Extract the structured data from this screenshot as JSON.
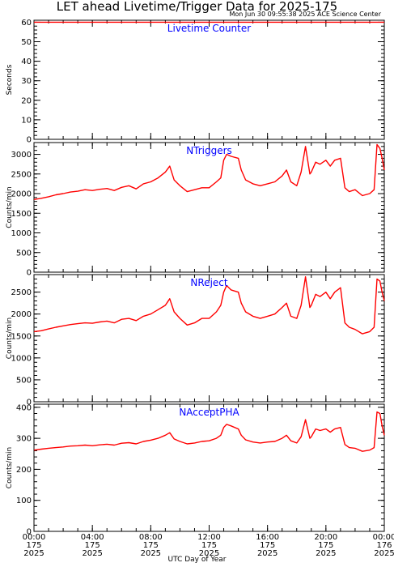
{
  "header": {
    "title": "LET ahead Livetime/Trigger Data for 2025-175",
    "subtitle": "Mon Jun 30 09:55:38 2025 ACE Science Center"
  },
  "colors": {
    "series": "#ff0000",
    "panel_label": "#0000ff",
    "axes": "#000000"
  },
  "chart_data": {
    "type": "line",
    "xlabel": "UTC Day of Year",
    "x_ticks": [
      {
        "hour": 0,
        "time": "00:00",
        "doy": "175",
        "year": "2025"
      },
      {
        "hour": 4,
        "time": "04:00",
        "doy": "175",
        "year": "2025"
      },
      {
        "hour": 8,
        "time": "08:00",
        "doy": "175",
        "year": "2025"
      },
      {
        "hour": 12,
        "time": "12:00",
        "doy": "175",
        "year": "2025"
      },
      {
        "hour": 16,
        "time": "16:00",
        "doy": "175",
        "year": "2025"
      },
      {
        "hour": 20,
        "time": "20:00",
        "doy": "175",
        "year": "2025"
      },
      {
        "hour": 24,
        "time": "00:00",
        "doy": "176",
        "year": "2025"
      }
    ],
    "xlim": [
      0,
      24
    ],
    "panels": [
      {
        "label": "Livetime Counter",
        "ylabel": "Seconds",
        "ylim": [
          0,
          61
        ],
        "yticks": [
          0,
          10,
          20,
          30,
          40,
          50,
          60
        ],
        "x": [
          0,
          24
        ],
        "y": [
          60,
          60
        ]
      },
      {
        "label": "NTriggers",
        "ylabel": "Counts/min",
        "ylim": [
          0,
          3300
        ],
        "yticks": [
          0,
          500,
          1000,
          1500,
          2000,
          2500,
          3000
        ],
        "x": [
          0,
          0.5,
          1,
          1.5,
          2,
          2.5,
          3,
          3.5,
          4,
          4.5,
          5,
          5.5,
          6,
          6.5,
          7,
          7.5,
          8,
          8.5,
          9,
          9.3,
          9.6,
          10,
          10.5,
          11,
          11.5,
          12,
          12.5,
          12.8,
          13,
          13.2,
          13.5,
          14,
          14.2,
          14.5,
          15,
          15.5,
          16,
          16.5,
          17,
          17.3,
          17.6,
          18,
          18.3,
          18.6,
          18.9,
          19,
          19.3,
          19.6,
          20,
          20.3,
          20.6,
          21,
          21.3,
          21.6,
          22,
          22.5,
          23,
          23.3,
          23.5,
          23.7,
          23.85,
          24
        ],
        "y": [
          1850,
          1880,
          1920,
          1970,
          2000,
          2040,
          2060,
          2100,
          2080,
          2110,
          2130,
          2080,
          2160,
          2200,
          2120,
          2250,
          2300,
          2400,
          2550,
          2700,
          2350,
          2200,
          2050,
          2100,
          2150,
          2150,
          2300,
          2400,
          2850,
          3000,
          2950,
          2900,
          2600,
          2350,
          2250,
          2200,
          2250,
          2300,
          2450,
          2600,
          2300,
          2200,
          2550,
          3200,
          2500,
          2550,
          2800,
          2750,
          2850,
          2700,
          2850,
          2900,
          2150,
          2050,
          2100,
          1950,
          2000,
          2100,
          3250,
          3150,
          2900,
          2600
        ]
      },
      {
        "label": "NReject",
        "ylabel": "Counts/min",
        "ylim": [
          0,
          2900
        ],
        "yticks": [
          0,
          500,
          1000,
          1500,
          2000,
          2500
        ],
        "x": [
          0,
          0.5,
          1,
          1.5,
          2,
          2.5,
          3,
          3.5,
          4,
          4.5,
          5,
          5.5,
          6,
          6.5,
          7,
          7.5,
          8,
          8.5,
          9,
          9.3,
          9.6,
          10,
          10.5,
          11,
          11.5,
          12,
          12.5,
          12.8,
          13,
          13.2,
          13.5,
          14,
          14.2,
          14.5,
          15,
          15.5,
          16,
          16.5,
          17,
          17.3,
          17.6,
          18,
          18.3,
          18.6,
          18.9,
          19,
          19.3,
          19.6,
          20,
          20.3,
          20.6,
          21,
          21.3,
          21.6,
          22,
          22.5,
          23,
          23.3,
          23.5,
          23.7,
          23.85,
          24
        ],
        "y": [
          1600,
          1620,
          1660,
          1700,
          1730,
          1760,
          1780,
          1800,
          1790,
          1820,
          1840,
          1800,
          1880,
          1900,
          1850,
          1950,
          2000,
          2100,
          2200,
          2350,
          2050,
          1900,
          1750,
          1800,
          1900,
          1900,
          2050,
          2200,
          2500,
          2650,
          2550,
          2500,
          2250,
          2050,
          1950,
          1900,
          1950,
          2000,
          2150,
          2250,
          1950,
          1900,
          2200,
          2850,
          2150,
          2200,
          2450,
          2400,
          2500,
          2350,
          2500,
          2600,
          1800,
          1700,
          1650,
          1550,
          1600,
          1700,
          2800,
          2750,
          2500,
          2300
        ]
      },
      {
        "label": "NAcceptPHA",
        "ylabel": "Counts/min",
        "ylim": [
          0,
          410
        ],
        "yticks": [
          0,
          100,
          200,
          300,
          400
        ],
        "x": [
          0,
          0.5,
          1,
          1.5,
          2,
          2.5,
          3,
          3.5,
          4,
          4.5,
          5,
          5.5,
          6,
          6.5,
          7,
          7.5,
          8,
          8.5,
          9,
          9.3,
          9.6,
          10,
          10.5,
          11,
          11.5,
          12,
          12.5,
          12.8,
          13,
          13.2,
          13.5,
          14,
          14.2,
          14.5,
          15,
          15.5,
          16,
          16.5,
          17,
          17.3,
          17.6,
          18,
          18.3,
          18.6,
          18.9,
          19,
          19.3,
          19.6,
          20,
          20.3,
          20.6,
          21,
          21.3,
          21.6,
          22,
          22.5,
          23,
          23.3,
          23.5,
          23.7,
          23.85,
          24
        ],
        "y": [
          262,
          265,
          268,
          270,
          272,
          275,
          276,
          278,
          276,
          279,
          281,
          278,
          284,
          286,
          282,
          290,
          294,
          300,
          310,
          318,
          298,
          290,
          282,
          285,
          290,
          292,
          300,
          310,
          335,
          345,
          340,
          330,
          310,
          295,
          288,
          285,
          288,
          290,
          300,
          310,
          292,
          285,
          305,
          360,
          300,
          305,
          330,
          325,
          330,
          320,
          330,
          335,
          280,
          270,
          268,
          258,
          262,
          270,
          385,
          380,
          340,
          310
        ]
      }
    ]
  }
}
